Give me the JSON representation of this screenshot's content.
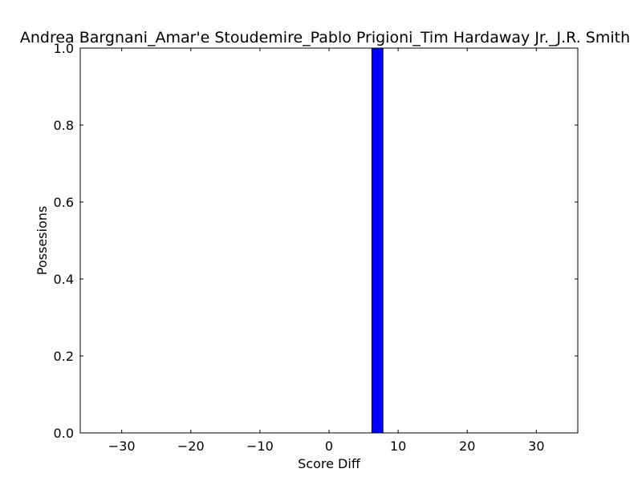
{
  "chart_data": {
    "type": "bar",
    "title": "Andrea Bargnani_Amar'e Stoudemire_Pablo Prigioni_Tim Hardaway Jr._J.R. Smith",
    "xlabel": "Score Diff",
    "ylabel": "Possesions",
    "xlim": [
      -36,
      36
    ],
    "ylim": [
      0,
      1.0
    ],
    "x_ticks": [
      -30,
      -20,
      -10,
      0,
      10,
      20,
      30
    ],
    "x_tick_labels": [
      "−30",
      "−20",
      "−10",
      "0",
      "10",
      "20",
      "30"
    ],
    "y_ticks": [
      0.0,
      0.2,
      0.4,
      0.6,
      0.8,
      1.0
    ],
    "y_tick_labels": [
      "0.0",
      "0.2",
      "0.4",
      "0.6",
      "0.8",
      "1.0"
    ],
    "bars": [
      {
        "x": 7,
        "value": 1.0
      }
    ],
    "bar_width": 1.6,
    "bar_color": "#0000ff",
    "grid": false
  }
}
